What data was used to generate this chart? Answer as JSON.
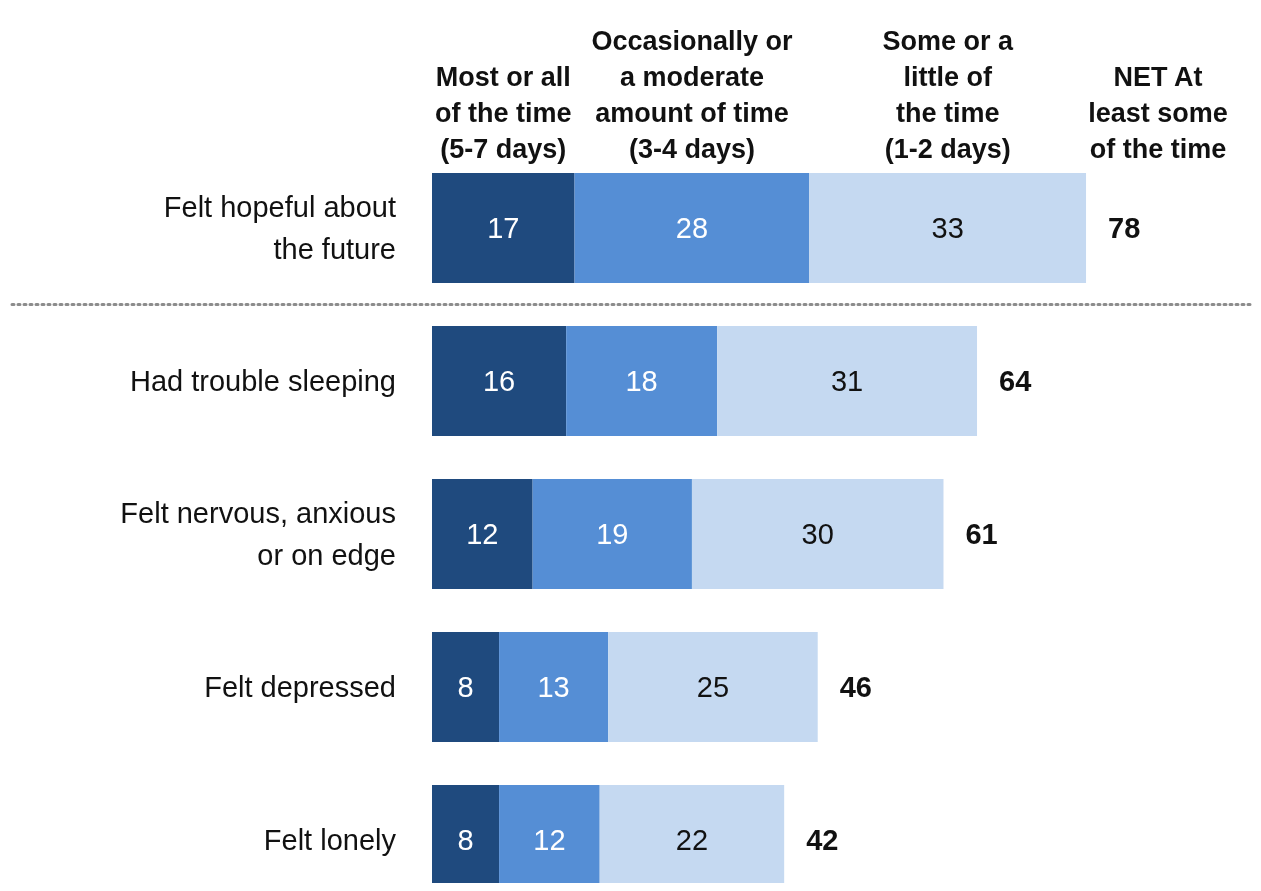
{
  "chart_data": {
    "type": "bar",
    "orientation": "horizontal",
    "stacked": true,
    "categories": [
      "Felt hopeful about the future",
      "Had trouble sleeping",
      "Felt nervous, anxious or on edge",
      "Felt depressed",
      "Felt lonely"
    ],
    "series": [
      {
        "name": "Most or all of the time (5-7 days)",
        "color": "#1f4a7e",
        "values": [
          17,
          16,
          12,
          8,
          8
        ]
      },
      {
        "name": "Occasionally or a moderate amount of time (3-4 days)",
        "color": "#558ed5",
        "values": [
          28,
          18,
          19,
          13,
          12
        ]
      },
      {
        "name": "Some or a little of the time (1-2 days)",
        "color": "#c5d9f1",
        "values": [
          33,
          31,
          30,
          25,
          22
        ]
      }
    ],
    "data_labels": true,
    "totals": [
      "78",
      "64",
      "61",
      "46",
      "42"
    ],
    "annotations": [
      "NET At least some of the time"
    ],
    "legend": "top"
  }
}
